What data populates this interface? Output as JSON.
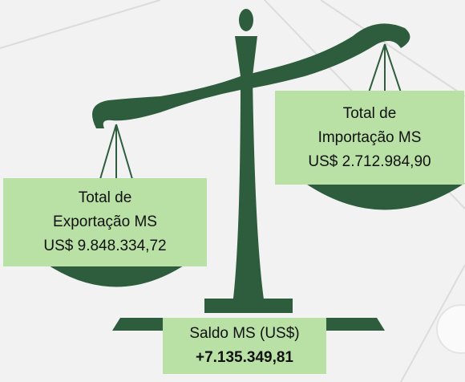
{
  "export_box": {
    "lines": [
      "Total de",
      "Exportação MS",
      "US$ 9.848.334,72"
    ]
  },
  "import_box": {
    "lines": [
      "Total de",
      "Importação MS",
      "US$ 2.712.984,90"
    ]
  },
  "balance_box": {
    "label": "Saldo MS (US$)",
    "value": "+7.135.349,81"
  }
}
